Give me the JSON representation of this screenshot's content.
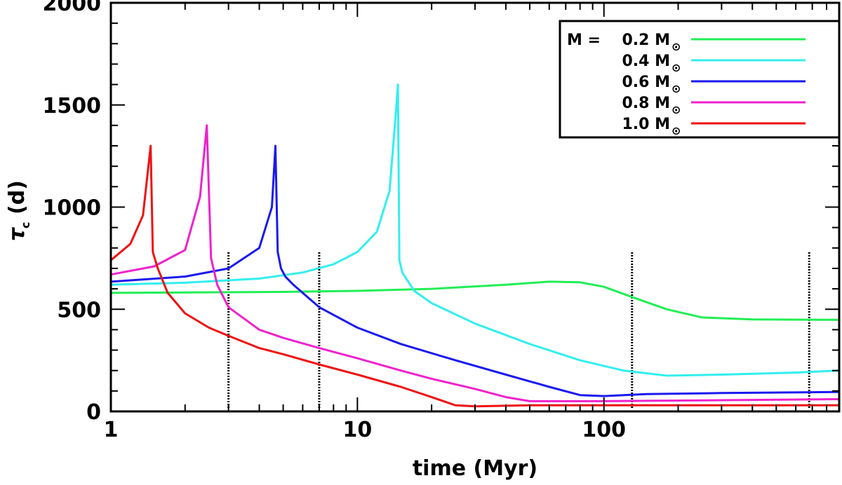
{
  "chart_data": {
    "type": "line",
    "xlabel": "time (Myr)",
    "ylabel_symbol": "τ",
    "ylabel_sub": "c",
    "ylabel_unit": "(d)",
    "xscale": "log",
    "xlim": [
      1,
      900
    ],
    "ylim": [
      0,
      2000
    ],
    "xticks": [
      {
        "value": 1,
        "label": "1"
      },
      {
        "value": 10,
        "label": "10"
      },
      {
        "value": 100,
        "label": "100"
      }
    ],
    "yticks": [
      {
        "value": 0,
        "label": "0"
      },
      {
        "value": 500,
        "label": "500"
      },
      {
        "value": 1000,
        "label": "1000"
      },
      {
        "value": 1500,
        "label": "1500"
      },
      {
        "value": 2000,
        "label": "2000"
      }
    ],
    "legend": {
      "position": "top-right",
      "prefix": "M = ",
      "sun_symbol": "⊙"
    },
    "series": [
      {
        "name": "0.2 M",
        "legend_label": "0.2 M",
        "color": "#22ee55",
        "x": [
          1,
          2,
          5,
          10,
          20,
          40,
          60,
          80,
          100,
          130,
          180,
          250,
          400,
          900
        ],
        "y": [
          580,
          582,
          585,
          590,
          600,
          620,
          635,
          632,
          610,
          560,
          500,
          460,
          450,
          448
        ]
      },
      {
        "name": "0.4 M",
        "legend_label": "0.4 M",
        "color": "#33eeee",
        "x": [
          1,
          2,
          4,
          6,
          8,
          10,
          12,
          13.5,
          14.3,
          14.6,
          14.8,
          15.2,
          17,
          20,
          30,
          50,
          80,
          120,
          180,
          300,
          600,
          900
        ],
        "y": [
          620,
          630,
          650,
          680,
          720,
          780,
          880,
          1080,
          1450,
          1600,
          740,
          680,
          590,
          530,
          430,
          330,
          250,
          200,
          175,
          180,
          190,
          200
        ]
      },
      {
        "name": "0.6 M",
        "legend_label": "0.6 M",
        "color": "#1a1aee",
        "x": [
          1,
          2,
          3,
          4,
          4.5,
          4.65,
          4.75,
          4.9,
          5.1,
          5.5,
          6,
          7,
          10,
          15,
          25,
          40,
          60,
          80,
          100,
          150,
          300,
          900
        ],
        "y": [
          635,
          660,
          700,
          800,
          1000,
          1300,
          780,
          700,
          660,
          620,
          580,
          510,
          410,
          330,
          250,
          180,
          120,
          80,
          75,
          85,
          90,
          95
        ]
      },
      {
        "name": "0.8 M",
        "legend_label": "0.8 M",
        "color": "#ee22cc",
        "x": [
          1,
          1.5,
          2,
          2.3,
          2.45,
          2.55,
          2.7,
          3,
          4,
          5,
          7,
          10,
          15,
          20,
          30,
          40,
          50,
          100,
          300,
          900
        ],
        "y": [
          670,
          710,
          790,
          1050,
          1400,
          750,
          620,
          510,
          400,
          360,
          310,
          260,
          200,
          160,
          110,
          70,
          50,
          50,
          55,
          60
        ]
      },
      {
        "name": "1.0 M",
        "legend_label": "1.0 M",
        "color": "#ee1111",
        "x": [
          1,
          1.2,
          1.35,
          1.45,
          1.48,
          1.55,
          1.7,
          2,
          2.5,
          3,
          4,
          5,
          7,
          10,
          15,
          20,
          25,
          30,
          50,
          100,
          300,
          900
        ],
        "y": [
          740,
          820,
          960,
          1300,
          780,
          700,
          580,
          480,
          410,
          370,
          310,
          280,
          230,
          180,
          120,
          70,
          30,
          25,
          30,
          30,
          30,
          30
        ]
      }
    ],
    "vlines": [
      3,
      7,
      130,
      680
    ]
  }
}
